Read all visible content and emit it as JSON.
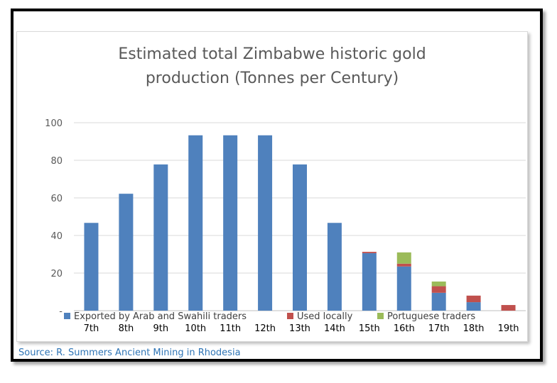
{
  "chart_data": {
    "type": "bar",
    "stacked": true,
    "title_lines": [
      "Estimated total Zimbabwe historic gold",
      "production (Tonnes per Century)"
    ],
    "categories": [
      "7th",
      "8th",
      "9th",
      "10th",
      "11th",
      "12th",
      "13th",
      "14th",
      "15th",
      "16th",
      "17th",
      "18th",
      "19th"
    ],
    "series": [
      {
        "name": "Exported by Arab and Swahili traders",
        "color": "#4f81bd",
        "values": [
          46.7,
          62.2,
          77.8,
          93.3,
          93.3,
          93.3,
          77.8,
          46.7,
          30.6,
          23.5,
          9.5,
          4.5,
          0
        ]
      },
      {
        "name": "Used locally",
        "color": "#c0504d",
        "values": [
          0,
          0,
          0,
          0,
          0,
          0,
          0,
          0,
          0.7,
          1.5,
          3.5,
          3.5,
          3.0
        ]
      },
      {
        "name": "Portuguese traders",
        "color": "#9bbb59",
        "values": [
          0,
          0,
          0,
          0,
          0,
          0,
          0,
          0,
          0,
          6.0,
          2.5,
          0,
          0
        ]
      }
    ],
    "ylim": [
      0,
      100
    ],
    "y_ticks": [
      0,
      20,
      40,
      60,
      80,
      100
    ],
    "y_tick_labels": [
      "-",
      "20",
      "40",
      "60",
      "80",
      "100"
    ],
    "grid": true,
    "legend_position": "bottom"
  },
  "source_note": "Source: R. Summers Ancient Mining in Rhodesia"
}
